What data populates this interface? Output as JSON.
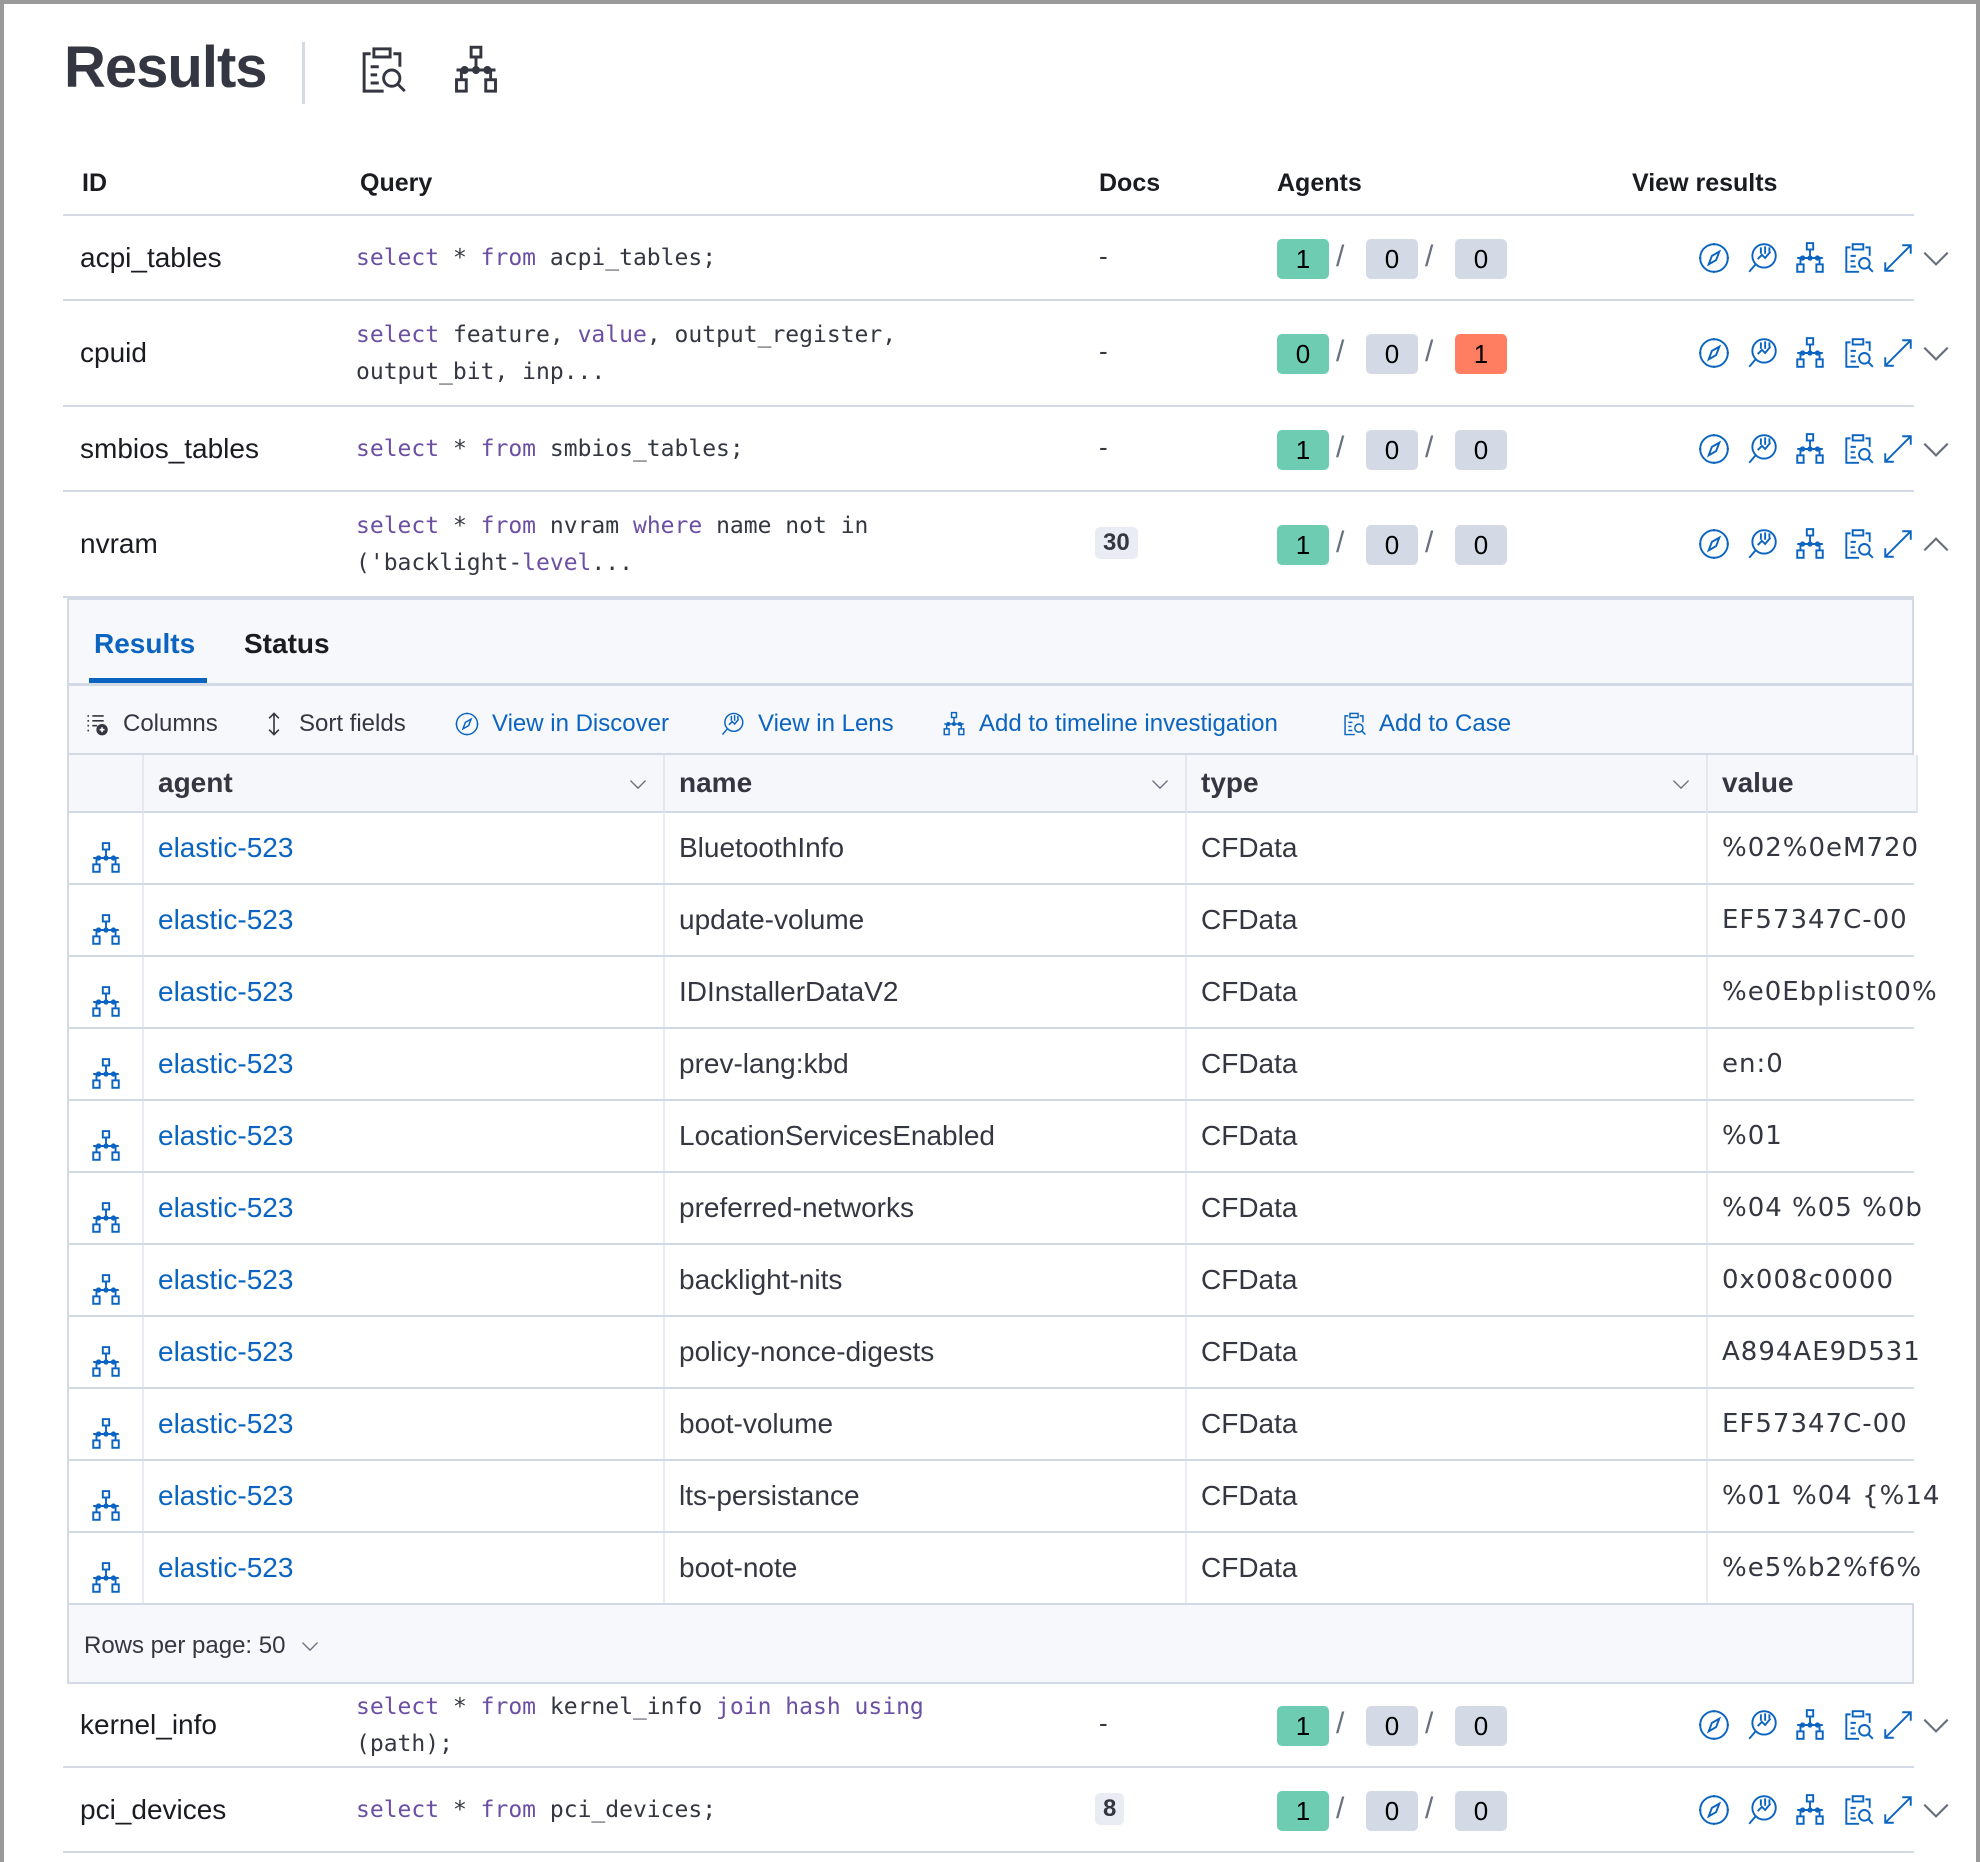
{
  "header": {
    "title": "Results",
    "icons": [
      "case-icon",
      "timeline-icon"
    ]
  },
  "table": {
    "columns": {
      "id": "ID",
      "query": "Query",
      "docs": "Docs",
      "agents": "Agents",
      "view_results": "View results"
    },
    "rows": [
      {
        "id": "acpi_tables",
        "query": "select * from acpi_tables;",
        "docs": "-",
        "docs_badge": false,
        "agents": [
          1,
          0,
          0
        ],
        "expanded": false
      },
      {
        "id": "cpuid",
        "query": "select feature, value, output_register, output_bit, inp...",
        "docs": "-",
        "docs_badge": false,
        "agents": [
          0,
          0,
          1
        ],
        "expanded": false
      },
      {
        "id": "smbios_tables",
        "query": "select * from smbios_tables;",
        "docs": "-",
        "docs_badge": false,
        "agents": [
          1,
          0,
          0
        ],
        "expanded": false
      },
      {
        "id": "nvram",
        "query": "select * from nvram where name not in ('backlight-level...",
        "docs": "30",
        "docs_badge": true,
        "agents": [
          1,
          0,
          0
        ],
        "expanded": true
      },
      {
        "id": "kernel_info",
        "query": "select * from kernel_info join hash using (path);",
        "docs": "-",
        "docs_badge": false,
        "agents": [
          1,
          0,
          0
        ],
        "expanded": false
      },
      {
        "id": "pci_devices",
        "query": "select * from pci_devices;",
        "docs": "8",
        "docs_badge": true,
        "agents": [
          1,
          0,
          0
        ],
        "expanded": false
      }
    ],
    "agent_badge_colors": {
      "success": "#6dccb1",
      "pending": "#d3dae6",
      "failed": "#ff7e62"
    },
    "view_result_icons": [
      "discover-icon",
      "lens-icon",
      "timeline-icon",
      "case-icon",
      "expand-icon",
      "chevron-icon"
    ]
  },
  "panel": {
    "tabs": [
      {
        "label": "Results",
        "active": true
      },
      {
        "label": "Status",
        "active": false
      }
    ],
    "toolbar": {
      "columns": "Columns",
      "sort_fields": "Sort fields",
      "view_in_discover": "View in Discover",
      "view_in_lens": "View in Lens",
      "add_to_timeline": "Add to timeline investigation",
      "add_to_case": "Add to Case"
    },
    "grid": {
      "columns": [
        "agent",
        "name",
        "type",
        "value"
      ],
      "rows": [
        {
          "agent": "elastic-523",
          "name": "BluetoothInfo",
          "type": "CFData",
          "value": "%02%0eM720"
        },
        {
          "agent": "elastic-523",
          "name": "update-volume",
          "type": "CFData",
          "value": "EF57347C-00"
        },
        {
          "agent": "elastic-523",
          "name": "IDInstallerDataV2",
          "type": "CFData",
          "value": "%e0Ebplist00%"
        },
        {
          "agent": "elastic-523",
          "name": "prev-lang:kbd",
          "type": "CFData",
          "value": "en:0"
        },
        {
          "agent": "elastic-523",
          "name": "LocationServicesEnabled",
          "type": "CFData",
          "value": "%01"
        },
        {
          "agent": "elastic-523",
          "name": "preferred-networks",
          "type": "CFData",
          "value": "%04 %05 %0b"
        },
        {
          "agent": "elastic-523",
          "name": "backlight-nits",
          "type": "CFData",
          "value": "0x008c0000"
        },
        {
          "agent": "elastic-523",
          "name": "policy-nonce-digests",
          "type": "CFData",
          "value": "A894AE9D531"
        },
        {
          "agent": "elastic-523",
          "name": "boot-volume",
          "type": "CFData",
          "value": "EF57347C-00"
        },
        {
          "agent": "elastic-523",
          "name": "lts-persistance",
          "type": "CFData",
          "value": "%01 %04 {%14"
        },
        {
          "agent": "elastic-523",
          "name": "boot-note",
          "type": "CFData",
          "value": "%e5%b2%f6%"
        }
      ]
    },
    "footer": {
      "rows_per_page": "Rows per page: 50"
    }
  }
}
